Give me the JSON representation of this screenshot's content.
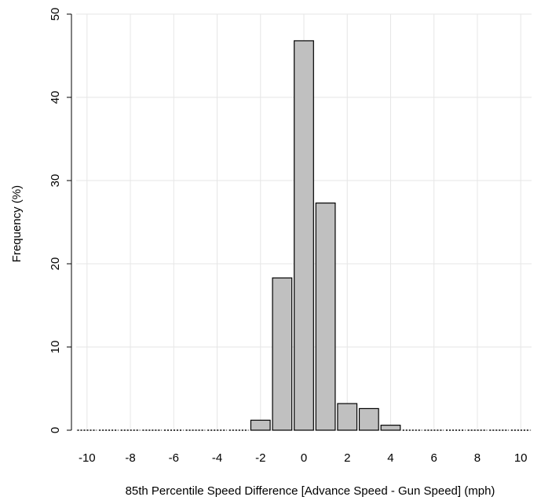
{
  "chart_data": {
    "type": "bar",
    "title": "",
    "xlabel": "85th Percentile Speed Difference [Advance Speed - Gun Speed] (mph)",
    "ylabel": "Frequency (%)",
    "xlim": [
      -10.5,
      10.5
    ],
    "ylim": [
      0,
      50
    ],
    "bin_width": 1,
    "x_ticks": [
      -10,
      -8,
      -6,
      -4,
      -2,
      0,
      2,
      4,
      6,
      8,
      10
    ],
    "x_tick_labels": [
      "-10",
      "-8",
      "-6",
      "-4",
      "-2",
      "0",
      "2",
      "4",
      "6",
      "8",
      "10"
    ],
    "y_ticks": [
      0,
      10,
      20,
      30,
      40,
      50
    ],
    "y_tick_labels": [
      "0",
      "10",
      "20",
      "30",
      "40",
      "50"
    ],
    "grid": true,
    "bars": [
      {
        "x": -10,
        "value": 0
      },
      {
        "x": -9,
        "value": 0
      },
      {
        "x": -8,
        "value": 0
      },
      {
        "x": -7,
        "value": 0
      },
      {
        "x": -6,
        "value": 0
      },
      {
        "x": -5,
        "value": 0
      },
      {
        "x": -4,
        "value": 0
      },
      {
        "x": -3,
        "value": 0
      },
      {
        "x": -2,
        "value": 1.2
      },
      {
        "x": -1,
        "value": 18.3
      },
      {
        "x": 0,
        "value": 46.8
      },
      {
        "x": 1,
        "value": 27.3
      },
      {
        "x": 2,
        "value": 3.2
      },
      {
        "x": 3,
        "value": 2.6
      },
      {
        "x": 4,
        "value": 0.6
      },
      {
        "x": 5,
        "value": 0
      },
      {
        "x": 6,
        "value": 0
      },
      {
        "x": 7,
        "value": 0
      },
      {
        "x": 8,
        "value": 0
      },
      {
        "x": 9,
        "value": 0
      },
      {
        "x": 10,
        "value": 0
      }
    ],
    "colors": {
      "bar_fill": "#c0c0c0",
      "bar_stroke": "#000000",
      "grid": "#e6e6e6",
      "axis": "#000000"
    }
  }
}
